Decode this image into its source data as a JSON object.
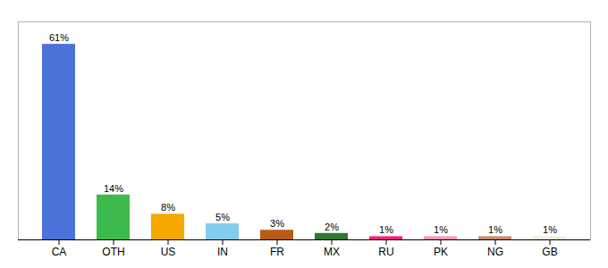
{
  "chart_data": {
    "type": "bar",
    "categories": [
      "CA",
      "OTH",
      "US",
      "IN",
      "FR",
      "MX",
      "RU",
      "PK",
      "NG",
      "GB"
    ],
    "values": [
      61,
      14,
      8,
      5,
      3,
      2,
      1,
      1,
      1,
      1
    ],
    "value_labels": [
      "61%",
      "14%",
      "8%",
      "5%",
      "3%",
      "2%",
      "1%",
      "1%",
      "1%",
      "1%"
    ],
    "colors": [
      "#4a72d9",
      "#3dba4e",
      "#f5a800",
      "#82ccee",
      "#b85c18",
      "#2d7a2d",
      "#ff1f7a",
      "#f599b8",
      "#cc8870",
      "#f0ede0"
    ],
    "ylim": [
      0,
      68
    ],
    "grid": false,
    "data_labels": true,
    "tick_labels": "x"
  }
}
